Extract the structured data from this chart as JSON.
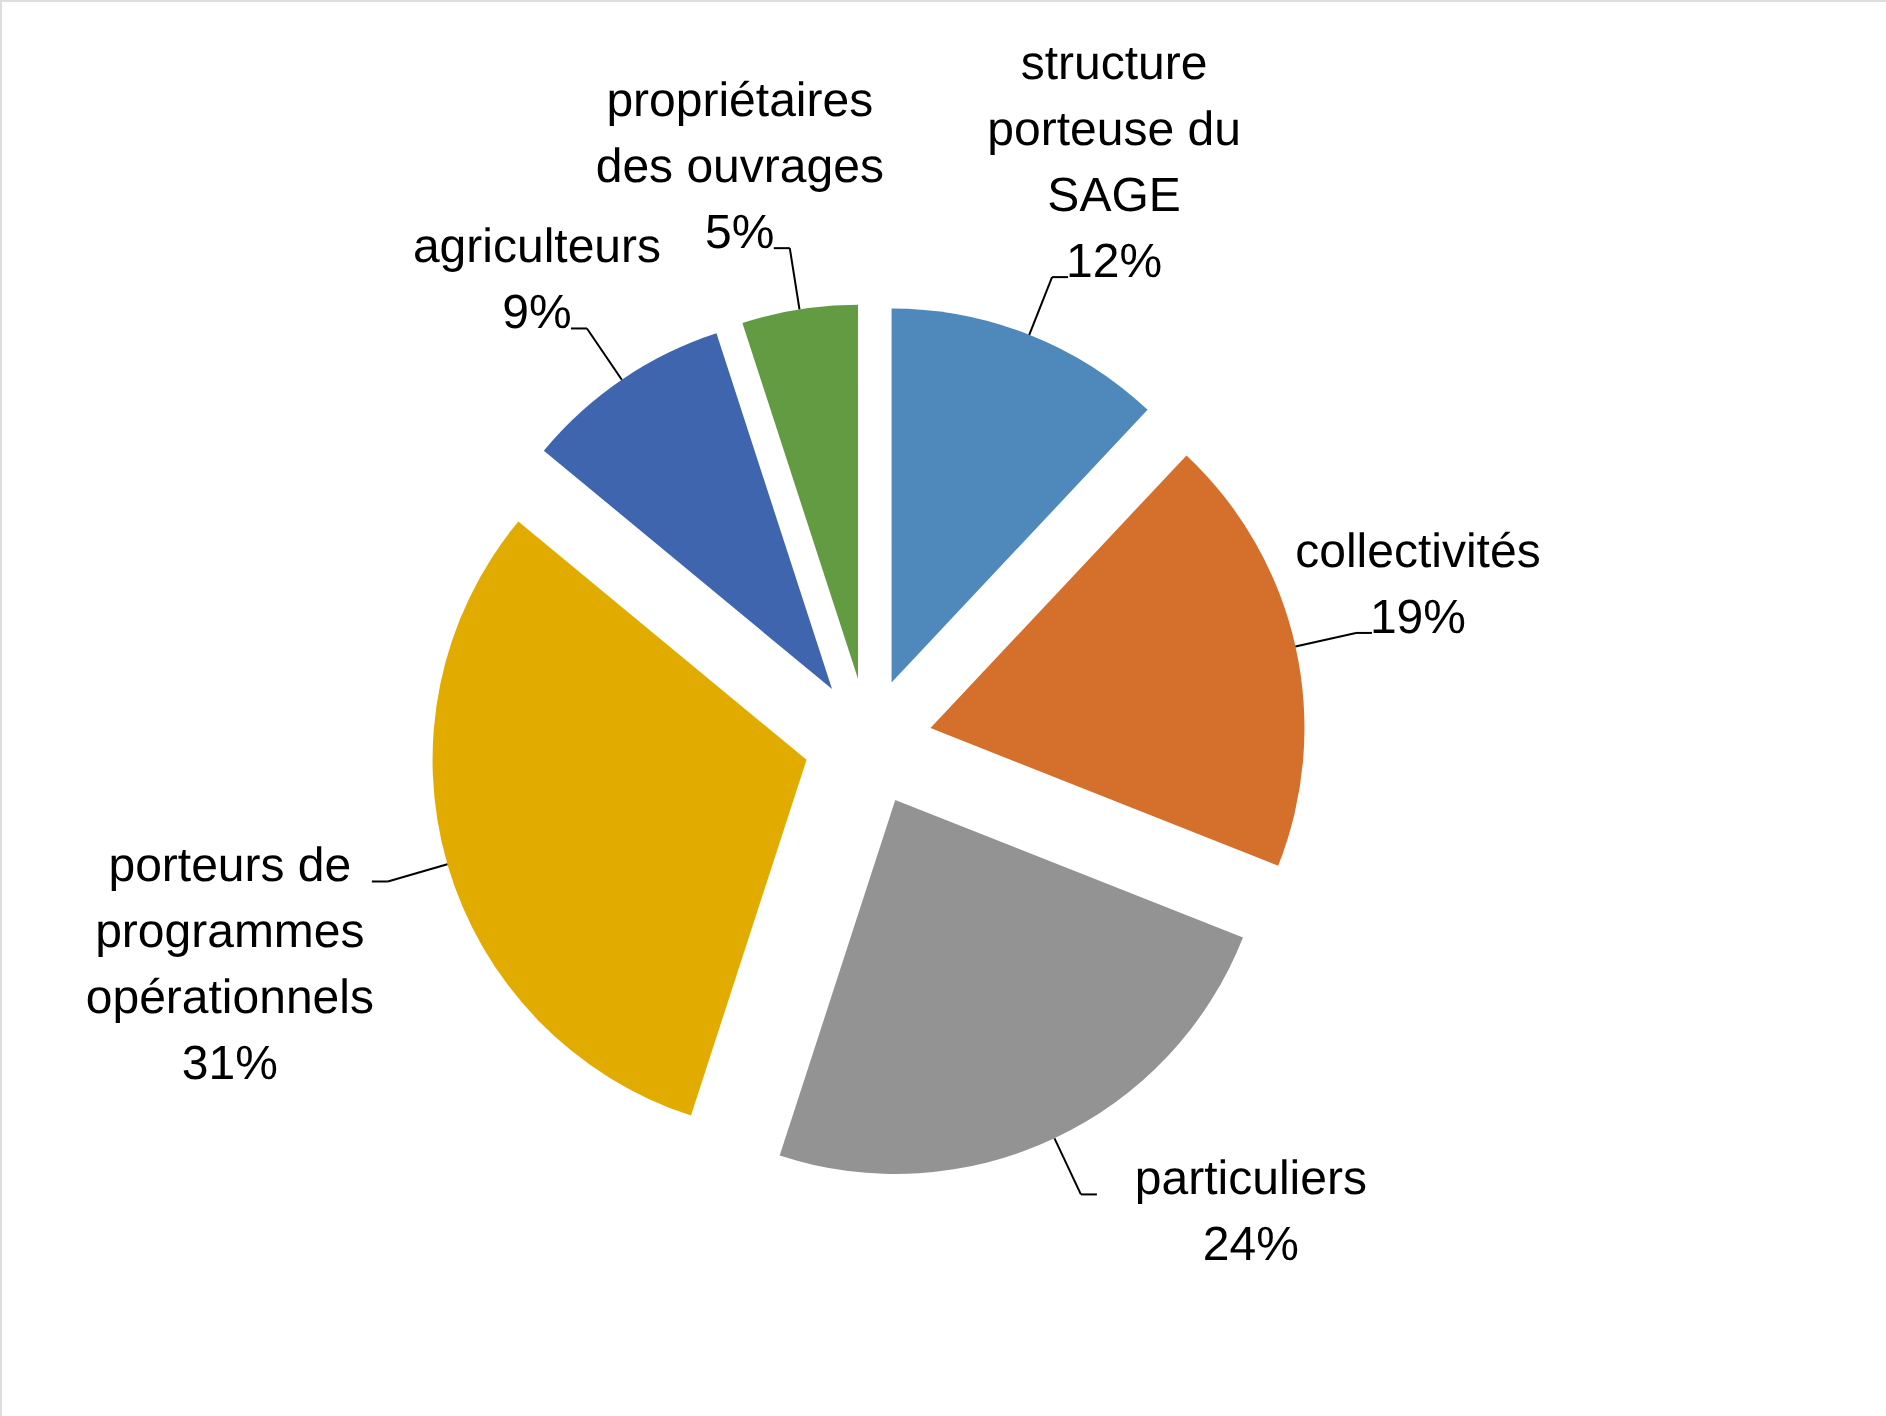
{
  "chart_data": {
    "type": "pie",
    "categories": [
      "structure porteuse du SAGE",
      "collectivités",
      "particuliers",
      "porteurs de programmes opérationnels",
      "agriculteurs",
      "propriétaires des ouvrages"
    ],
    "values": [
      12,
      19,
      24,
      31,
      9,
      5
    ],
    "colors": [
      "#4f88bb",
      "#d46f2c",
      "#939393",
      "#e2ab00",
      "#3e65ad",
      "#639b42"
    ],
    "value_labels": [
      "12%",
      "19%",
      "24%",
      "31%",
      "9%",
      "5%"
    ]
  }
}
